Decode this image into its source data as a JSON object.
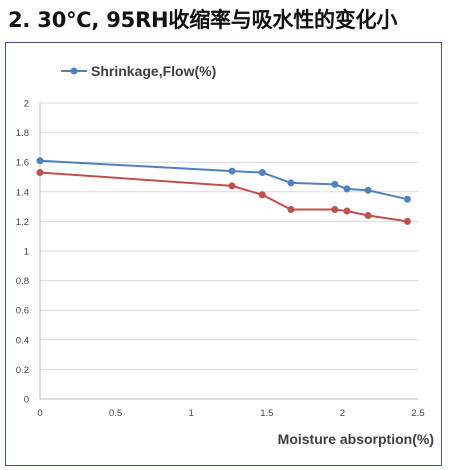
{
  "title": "2. 30℃, 95RH收缩率与吸水性的变化小",
  "chart_data": {
    "type": "line",
    "xlabel": "Moisture absorption(%)",
    "ylabel": "",
    "xlim": [
      0,
      2.5
    ],
    "ylim": [
      0,
      2
    ],
    "x_ticks": [
      "0",
      "0.5",
      "1",
      "1.5",
      "2",
      "2.5"
    ],
    "y_ticks": [
      "0",
      "0.2",
      "0.4",
      "0.6",
      "0.8",
      "1",
      "1.2",
      "1.4",
      "1.6",
      "1.8",
      "2"
    ],
    "grid": "horizontal",
    "legend_position": "top-left",
    "series": [
      {
        "name": "Shrinkage,Flow(%)",
        "color": "#4f81bd",
        "x": [
          0,
          1.27,
          1.47,
          1.66,
          1.95,
          2.03,
          2.17,
          2.43
        ],
        "y": [
          1.61,
          1.54,
          1.53,
          1.46,
          1.45,
          1.42,
          1.41,
          1.35
        ]
      },
      {
        "name": "",
        "color": "#c0504d",
        "x": [
          0,
          1.27,
          1.47,
          1.66,
          1.95,
          2.03,
          2.17,
          2.43
        ],
        "y": [
          1.53,
          1.44,
          1.38,
          1.28,
          1.28,
          1.27,
          1.24,
          1.2
        ]
      }
    ]
  }
}
